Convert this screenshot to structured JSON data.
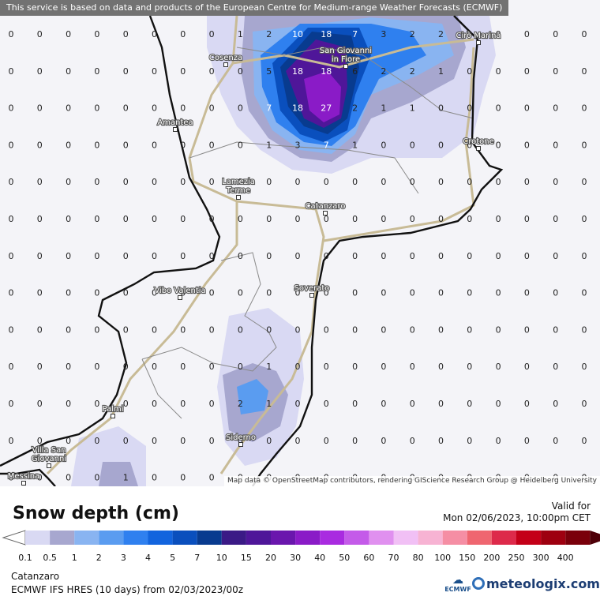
{
  "banner": "This service is based on data and products of the European Centre for Medium-range Weather Forecasts (ECMWF)",
  "attribution": "Map data © OpenStreetMap contributors, rendering GIScience Research Group @ Heidelberg University",
  "title": "Snow depth (cm)",
  "valid_label": "Valid for",
  "valid_date": "Mon 02/06/2023, 10:00pm CET",
  "location": "Catanzaro",
  "model_run": "ECMWF IFS HRES (10 days) from 02/03/2023/00z",
  "logos": {
    "ecmwf": "ECMWF",
    "meteologix": "meteologix.com"
  },
  "legend": {
    "labels": [
      "0.1",
      "0.5",
      "1",
      "2",
      "3",
      "4",
      "5",
      "7",
      "10",
      "15",
      "20",
      "30",
      "40",
      "50",
      "60",
      "70",
      "80",
      "100",
      "150",
      "200",
      "250",
      "300",
      "400"
    ],
    "colors": [
      "#d9d9f3",
      "#a7a7cf",
      "#89b4f1",
      "#5a9cf0",
      "#2f80ef",
      "#1264de",
      "#0a4fbd",
      "#083b8f",
      "#3b1a86",
      "#4f1699",
      "#6a16ad",
      "#8a1bc7",
      "#a92be0",
      "#c45be9",
      "#e090ef",
      "#f1c0f5",
      "#f7b3d3",
      "#f58ea4",
      "#ef6670",
      "#dd2a4a",
      "#c40018",
      "#9e0010",
      "#7a000b",
      "#4e0008"
    ]
  },
  "places": [
    {
      "name": "Cirò Marina"
    },
    {
      "name": "Cosenza"
    },
    {
      "name": "San Giovanni\nin Fiore"
    },
    {
      "name": "Amantea"
    },
    {
      "name": "Crotone"
    },
    {
      "name": "Lamezia\nTerme"
    },
    {
      "name": "Catanzaro"
    },
    {
      "name": "Vibo Valentia"
    },
    {
      "name": "Soverato"
    },
    {
      "name": "Palmi"
    },
    {
      "name": "Siderno"
    },
    {
      "name": "Villa San\nGiovanni"
    },
    {
      "name": "Messina"
    }
  ],
  "grid": {
    "rows": [
      [
        0,
        0,
        0,
        0,
        0,
        0,
        0,
        0,
        1,
        2,
        10,
        18,
        7,
        3,
        2,
        2,
        0,
        0,
        0,
        0,
        0
      ],
      [
        0,
        0,
        0,
        0,
        0,
        0,
        0,
        0,
        0,
        5,
        18,
        18,
        6,
        2,
        2,
        1,
        0,
        0,
        0,
        0,
        0
      ],
      [
        0,
        0,
        0,
        0,
        0,
        0,
        0,
        0,
        0,
        7,
        18,
        27,
        2,
        1,
        1,
        0,
        0,
        0,
        0,
        0,
        0
      ],
      [
        0,
        0,
        0,
        0,
        0,
        0,
        0,
        0,
        0,
        1,
        3,
        7,
        1,
        0,
        0,
        0,
        0,
        0,
        0,
        0,
        0
      ],
      [
        0,
        0,
        0,
        0,
        0,
        0,
        0,
        0,
        0,
        0,
        0,
        0,
        0,
        0,
        0,
        0,
        0,
        0,
        0,
        0,
        0
      ],
      [
        0,
        0,
        0,
        0,
        0,
        0,
        0,
        0,
        0,
        0,
        0,
        0,
        0,
        0,
        0,
        0,
        0,
        0,
        0,
        0,
        0
      ],
      [
        0,
        0,
        0,
        0,
        0,
        0,
        0,
        0,
        0,
        0,
        0,
        0,
        0,
        0,
        0,
        0,
        0,
        0,
        0,
        0,
        0
      ],
      [
        0,
        0,
        0,
        0,
        0,
        0,
        0,
        0,
        0,
        0,
        0,
        0,
        0,
        0,
        0,
        0,
        0,
        0,
        0,
        0,
        0
      ],
      [
        0,
        0,
        0,
        0,
        0,
        0,
        0,
        0,
        0,
        0,
        0,
        0,
        0,
        0,
        0,
        0,
        0,
        0,
        0,
        0,
        0
      ],
      [
        0,
        0,
        0,
        0,
        0,
        0,
        0,
        0,
        0,
        1,
        0,
        0,
        0,
        0,
        0,
        0,
        0,
        0,
        0,
        0,
        0
      ],
      [
        0,
        0,
        0,
        0,
        0,
        0,
        0,
        0,
        2,
        1,
        0,
        0,
        0,
        0,
        0,
        0,
        0,
        0,
        0,
        0,
        0
      ],
      [
        0,
        0,
        0,
        0,
        0,
        0,
        0,
        0,
        0,
        0,
        0,
        0,
        0,
        0,
        0,
        0,
        0,
        0,
        0,
        0,
        0
      ],
      [
        0,
        0,
        0,
        0,
        1,
        0,
        0,
        0,
        0,
        0,
        0,
        0,
        0,
        0,
        0,
        0,
        0,
        0,
        0,
        0,
        0
      ]
    ]
  }
}
